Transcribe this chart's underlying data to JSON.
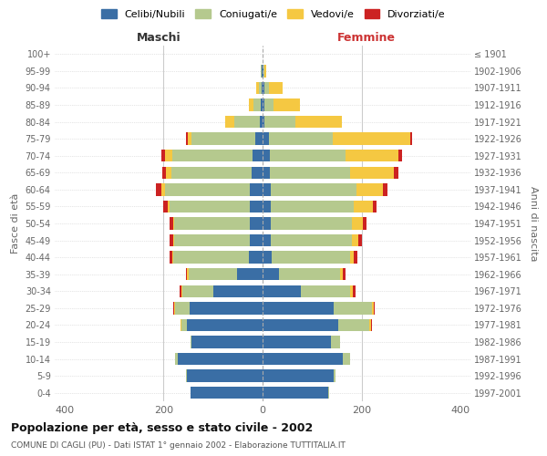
{
  "age_groups": [
    "0-4",
    "5-9",
    "10-14",
    "15-19",
    "20-24",
    "25-29",
    "30-34",
    "35-39",
    "40-44",
    "45-49",
    "50-54",
    "55-59",
    "60-64",
    "65-69",
    "70-74",
    "75-79",
    "80-84",
    "85-89",
    "90-94",
    "95-99",
    "100+"
  ],
  "birth_years": [
    "1997-2001",
    "1992-1996",
    "1987-1991",
    "1982-1986",
    "1977-1981",
    "1972-1976",
    "1967-1971",
    "1962-1966",
    "1957-1961",
    "1952-1956",
    "1947-1951",
    "1942-1946",
    "1937-1941",
    "1932-1936",
    "1927-1931",
    "1922-1926",
    "1917-1921",
    "1912-1916",
    "1907-1911",
    "1902-1906",
    "≤ 1901"
  ],
  "male_celibe": [
    145,
    153,
    172,
    143,
    152,
    148,
    100,
    52,
    28,
    25,
    25,
    25,
    25,
    22,
    20,
    15,
    5,
    3,
    2,
    1,
    0
  ],
  "male_coniugato": [
    1,
    1,
    4,
    2,
    12,
    28,
    62,
    98,
    153,
    153,
    153,
    163,
    173,
    163,
    163,
    128,
    52,
    15,
    6,
    2,
    0
  ],
  "male_vedovo": [
    0,
    0,
    0,
    0,
    1,
    2,
    2,
    2,
    2,
    2,
    2,
    4,
    7,
    10,
    14,
    8,
    18,
    10,
    4,
    0,
    0
  ],
  "male_divorziato": [
    0,
    0,
    0,
    0,
    1,
    3,
    3,
    3,
    5,
    8,
    8,
    8,
    10,
    7,
    7,
    3,
    0,
    0,
    0,
    0,
    0
  ],
  "female_nubile": [
    133,
    143,
    163,
    138,
    153,
    143,
    78,
    33,
    18,
    17,
    17,
    17,
    17,
    14,
    14,
    13,
    4,
    3,
    4,
    1,
    0
  ],
  "female_coniugata": [
    2,
    4,
    13,
    18,
    63,
    78,
    98,
    123,
    158,
    163,
    163,
    168,
    173,
    163,
    153,
    128,
    63,
    20,
    8,
    2,
    0
  ],
  "female_vedova": [
    0,
    0,
    0,
    1,
    4,
    4,
    7,
    7,
    8,
    13,
    23,
    38,
    53,
    88,
    108,
    158,
    93,
    53,
    28,
    4,
    0
  ],
  "female_divorziata": [
    0,
    0,
    0,
    0,
    1,
    2,
    4,
    4,
    7,
    7,
    7,
    7,
    9,
    9,
    7,
    3,
    1,
    0,
    0,
    0,
    0
  ],
  "color_celibe": "#3a6ea5",
  "color_coniugato": "#b5c98e",
  "color_vedovo": "#f5c842",
  "color_divorziato": "#cc2222",
  "title_bold": "Popolazione per età, sesso e stato civile - 2002",
  "subtitle": "COMUNE DI CAGLI (PU) - Dati ISTAT 1° gennaio 2002 - Elaborazione TUTTITALIA.IT",
  "label_maschi": "Maschi",
  "label_femmine": "Femmine",
  "ylabel_left": "Fasce di età",
  "ylabel_right": "Anni di nascita",
  "xlim": 420,
  "legend_labels": [
    "Celibi/Nubili",
    "Coniugati/e",
    "Vedovi/e",
    "Divorziati/e"
  ],
  "background_color": "#ffffff",
  "grid_color": "#cccccc"
}
